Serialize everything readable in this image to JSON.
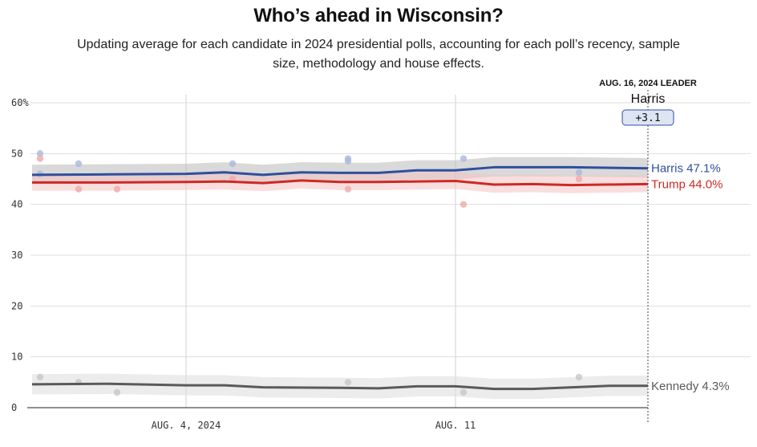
{
  "title": "Who’s ahead in Wisconsin?",
  "subtitle": "Updating average for each candidate in 2024 presidential polls, accounting for each poll’s recency, sample size, methodology and house effects.",
  "leader": {
    "caption": "AUG. 16, 2024 LEADER",
    "name": "Harris",
    "margin": "+3.1"
  },
  "chart_data": {
    "type": "line",
    "x_range": [
      "2024-07-31",
      "2024-08-16"
    ],
    "y_range": [
      0,
      60
    ],
    "y_ticks": [
      {
        "value": 0,
        "label": "0"
      },
      {
        "value": 10,
        "label": "10"
      },
      {
        "value": 20,
        "label": "20"
      },
      {
        "value": 30,
        "label": "30"
      },
      {
        "value": 40,
        "label": "40"
      },
      {
        "value": 50,
        "label": "50"
      },
      {
        "value": 60,
        "label": "60%"
      }
    ],
    "x_ticks": [
      {
        "date": "2024-08-04",
        "label": "AUG. 4, 2024"
      },
      {
        "date": "2024-08-11",
        "label": "AUG. 11"
      }
    ],
    "grid": true,
    "series": [
      {
        "name": "Harris",
        "end_label": "Harris 47.1%",
        "color": "#2f4f9e",
        "band_color": "#b9b9b9",
        "dot_color": "#a9b8dc",
        "points": [
          {
            "x": "2024-07-31",
            "y": 45.8
          },
          {
            "x": "2024-08-02",
            "y": 45.9
          },
          {
            "x": "2024-08-04",
            "y": 46.0
          },
          {
            "x": "2024-08-05",
            "y": 46.3
          },
          {
            "x": "2024-08-06",
            "y": 45.8
          },
          {
            "x": "2024-08-07",
            "y": 46.3
          },
          {
            "x": "2024-08-08",
            "y": 46.2
          },
          {
            "x": "2024-08-09",
            "y": 46.2
          },
          {
            "x": "2024-08-10",
            "y": 46.7
          },
          {
            "x": "2024-08-11",
            "y": 46.7
          },
          {
            "x": "2024-08-12",
            "y": 47.3
          },
          {
            "x": "2024-08-14",
            "y": 47.3
          },
          {
            "x": "2024-08-16",
            "y": 47.1
          }
        ],
        "band": {
          "lower": -1.8,
          "upper": 2.0
        },
        "polls": [
          {
            "x": "2024-07-31",
            "y": 50
          },
          {
            "x": "2024-07-31",
            "y": 46
          },
          {
            "x": "2024-08-01",
            "y": 48
          },
          {
            "x": "2024-08-05",
            "y": 48
          },
          {
            "x": "2024-08-08",
            "y": 49
          },
          {
            "x": "2024-08-08",
            "y": 48.5
          },
          {
            "x": "2024-08-11",
            "y": 49
          },
          {
            "x": "2024-08-14",
            "y": 46.3
          }
        ]
      },
      {
        "name": "Trump",
        "end_label": "Trump 44.0%",
        "color": "#cc2a26",
        "band_color": "#f4c2c2",
        "dot_color": "#f0a9a9",
        "points": [
          {
            "x": "2024-07-31",
            "y": 44.3
          },
          {
            "x": "2024-08-02",
            "y": 44.3
          },
          {
            "x": "2024-08-04",
            "y": 44.4
          },
          {
            "x": "2024-08-05",
            "y": 44.5
          },
          {
            "x": "2024-08-06",
            "y": 44.2
          },
          {
            "x": "2024-08-07",
            "y": 44.7
          },
          {
            "x": "2024-08-08",
            "y": 44.4
          },
          {
            "x": "2024-08-09",
            "y": 44.4
          },
          {
            "x": "2024-08-10",
            "y": 44.5
          },
          {
            "x": "2024-08-11",
            "y": 44.6
          },
          {
            "x": "2024-08-12",
            "y": 43.9
          },
          {
            "x": "2024-08-13",
            "y": 44.0
          },
          {
            "x": "2024-08-14",
            "y": 43.8
          },
          {
            "x": "2024-08-16",
            "y": 44.0
          }
        ],
        "band": {
          "lower": -1.6,
          "upper": 1.8
        },
        "polls": [
          {
            "x": "2024-07-31",
            "y": 49
          },
          {
            "x": "2024-08-01",
            "y": 43
          },
          {
            "x": "2024-08-02",
            "y": 43
          },
          {
            "x": "2024-08-05",
            "y": 45
          },
          {
            "x": "2024-08-08",
            "y": 43
          },
          {
            "x": "2024-08-11",
            "y": 40
          },
          {
            "x": "2024-08-14",
            "y": 45
          }
        ]
      },
      {
        "name": "Kennedy",
        "end_label": "Kennedy 4.3%",
        "color": "#5a5a5a",
        "band_color": "#dddddd",
        "dot_color": "#c8c8c8",
        "points": [
          {
            "x": "2024-07-31",
            "y": 4.6
          },
          {
            "x": "2024-08-02",
            "y": 4.7
          },
          {
            "x": "2024-08-04",
            "y": 4.4
          },
          {
            "x": "2024-08-05",
            "y": 4.4
          },
          {
            "x": "2024-08-06",
            "y": 4.0
          },
          {
            "x": "2024-08-08",
            "y": 3.9
          },
          {
            "x": "2024-08-09",
            "y": 3.8
          },
          {
            "x": "2024-08-10",
            "y": 4.2
          },
          {
            "x": "2024-08-11",
            "y": 4.2
          },
          {
            "x": "2024-08-12",
            "y": 3.7
          },
          {
            "x": "2024-08-13",
            "y": 3.7
          },
          {
            "x": "2024-08-15",
            "y": 4.3
          },
          {
            "x": "2024-08-16",
            "y": 4.3
          }
        ],
        "band": {
          "lower": -2.0,
          "upper": 2.0
        },
        "polls": [
          {
            "x": "2024-07-31",
            "y": 6
          },
          {
            "x": "2024-08-01",
            "y": 5
          },
          {
            "x": "2024-08-02",
            "y": 3
          },
          {
            "x": "2024-08-08",
            "y": 5
          },
          {
            "x": "2024-08-11",
            "y": 3
          },
          {
            "x": "2024-08-14",
            "y": 6
          }
        ]
      }
    ]
  }
}
